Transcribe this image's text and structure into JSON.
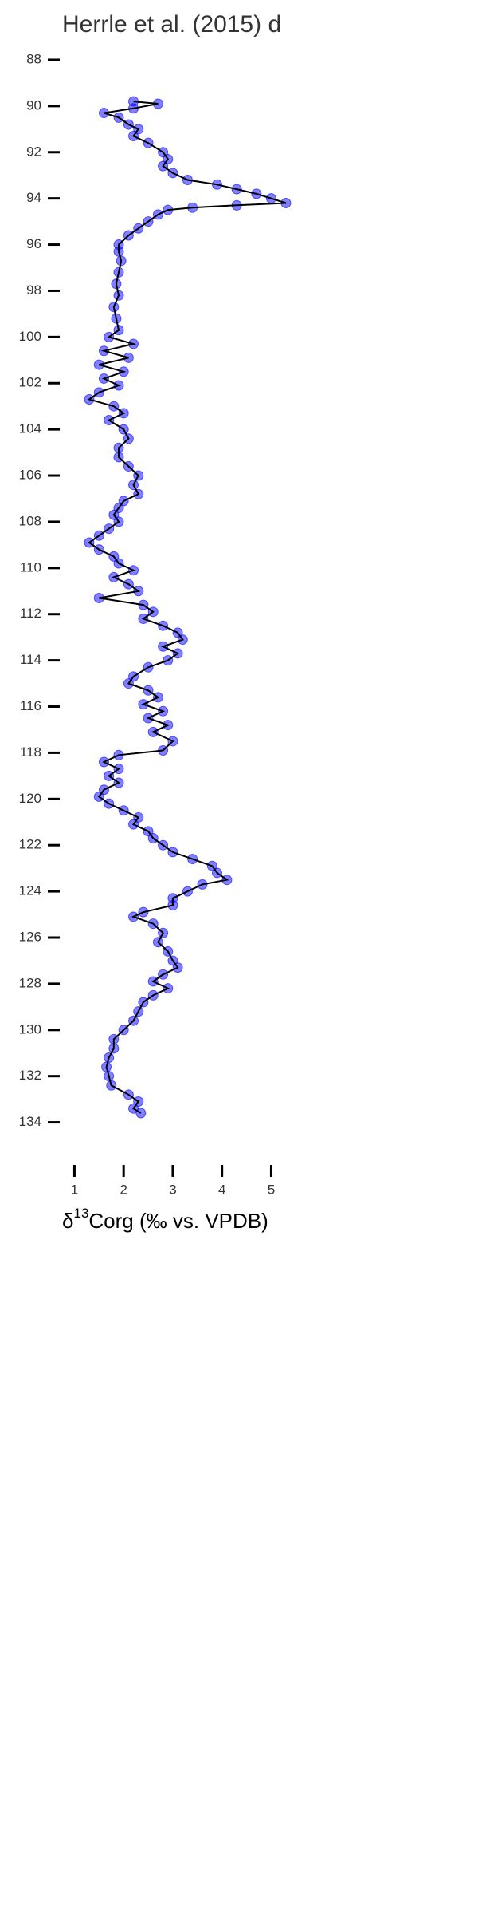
{
  "chart_data": {
    "type": "scatter",
    "title": "Herrle et al. (2015) d",
    "xlabel": {
      "prefix": "δ",
      "sup": "13",
      "main": "Corg (‰ vs. VPDB)"
    },
    "xlim": [
      0.75,
      5.5
    ],
    "xticks": [
      1,
      2,
      3,
      4,
      5
    ],
    "ylim": [
      87.5,
      135.5
    ],
    "yticks": [
      88,
      90,
      92,
      94,
      96,
      98,
      100,
      102,
      104,
      106,
      108,
      110,
      112,
      114,
      116,
      118,
      120,
      122,
      124,
      126,
      128,
      130,
      132,
      134
    ],
    "y_inverted": true,
    "grid": false,
    "series": [
      {
        "color": "#0000ff",
        "line_color": "#000000",
        "x": [
          2.2,
          2.7,
          2.2,
          1.6,
          1.9,
          2.1,
          2.3,
          2.2,
          2.5,
          2.8,
          2.9,
          2.8,
          3.0,
          3.3,
          3.9,
          4.3,
          4.7,
          5.0,
          5.3,
          4.3,
          3.4,
          2.9,
          2.7,
          2.5,
          2.3,
          2.1,
          1.9,
          1.9,
          1.95,
          1.9,
          1.85,
          1.9,
          1.8,
          1.85,
          1.9,
          1.7,
          2.2,
          1.6,
          2.1,
          1.5,
          2.0,
          1.6,
          1.9,
          1.5,
          1.3,
          1.8,
          2.0,
          1.7,
          2.0,
          2.1,
          1.9,
          1.9,
          2.1,
          2.3,
          2.2,
          2.3,
          2.0,
          1.9,
          1.8,
          1.9,
          1.7,
          1.5,
          1.3,
          1.5,
          1.8,
          1.9,
          2.2,
          1.8,
          2.1,
          2.3,
          1.5,
          2.4,
          2.6,
          2.4,
          2.8,
          3.1,
          3.2,
          2.8,
          3.1,
          2.9,
          2.5,
          2.2,
          2.1,
          2.5,
          2.7,
          2.4,
          2.8,
          2.5,
          2.9,
          2.6,
          3.0,
          2.8,
          1.9,
          1.6,
          1.9,
          1.7,
          1.9,
          1.6,
          1.5,
          1.7,
          2.0,
          2.3,
          2.2,
          2.5,
          2.6,
          2.8,
          3.0,
          3.4,
          3.8,
          3.9,
          4.1,
          3.6,
          3.3,
          3.0,
          3.0,
          2.4,
          2.2,
          2.6,
          2.8,
          2.7,
          2.9,
          3.0,
          3.1,
          2.8,
          2.6,
          2.9,
          2.6,
          2.4,
          2.3,
          2.2,
          2.0,
          1.8,
          1.8,
          1.7,
          1.65,
          1.7,
          1.75,
          2.1,
          2.3,
          2.2,
          2.35
        ],
        "values": [
          89.8,
          89.9,
          90.1,
          90.3,
          90.5,
          90.8,
          91.0,
          91.3,
          91.6,
          92.0,
          92.3,
          92.6,
          92.9,
          93.2,
          93.4,
          93.6,
          93.8,
          94.0,
          94.2,
          94.3,
          94.4,
          94.5,
          94.7,
          95.0,
          95.3,
          95.6,
          96.0,
          96.3,
          96.7,
          97.2,
          97.7,
          98.2,
          98.7,
          99.2,
          99.7,
          100.0,
          100.3,
          100.6,
          100.9,
          101.2,
          101.5,
          101.8,
          102.1,
          102.4,
          102.7,
          103.0,
          103.3,
          103.6,
          104.0,
          104.4,
          104.8,
          105.2,
          105.6,
          106.0,
          106.4,
          106.8,
          107.1,
          107.4,
          107.7,
          108.0,
          108.3,
          108.6,
          108.9,
          109.2,
          109.5,
          109.8,
          110.1,
          110.4,
          110.7,
          111.0,
          111.3,
          111.6,
          111.9,
          112.2,
          112.5,
          112.8,
          113.1,
          113.4,
          113.7,
          114.0,
          114.3,
          114.7,
          115.0,
          115.3,
          115.6,
          115.9,
          116.2,
          116.5,
          116.8,
          117.1,
          117.5,
          117.9,
          118.1,
          118.4,
          118.7,
          119.0,
          119.3,
          119.6,
          119.9,
          120.2,
          120.5,
          120.8,
          121.1,
          121.4,
          121.7,
          122.0,
          122.3,
          122.6,
          122.9,
          123.2,
          123.5,
          123.7,
          124.0,
          124.3,
          124.6,
          124.9,
          125.1,
          125.4,
          125.8,
          126.2,
          126.6,
          127.0,
          127.3,
          127.6,
          127.9,
          128.2,
          128.5,
          128.8,
          129.2,
          129.6,
          130.0,
          130.4,
          130.8,
          131.2,
          131.6,
          132.0,
          132.4,
          132.8,
          133.1,
          133.4,
          133.6
        ]
      }
    ]
  }
}
